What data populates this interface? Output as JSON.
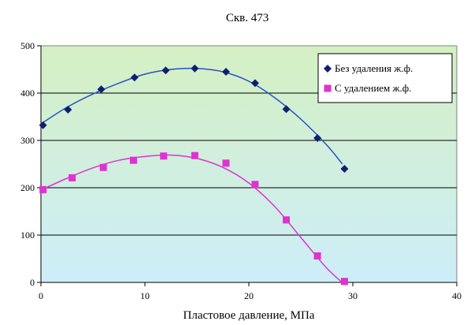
{
  "chart_data": {
    "type": "scatter",
    "title": "Скв. 473",
    "xlabel": "Пластовое давление, МПа",
    "ylabel": "",
    "xlim": [
      0,
      40
    ],
    "ylim": [
      0,
      500
    ],
    "xticks": [
      0,
      10,
      20,
      30,
      40
    ],
    "yticks": [
      0,
      100,
      200,
      300,
      400,
      500
    ],
    "grid": "horizontal",
    "legend_position": "top-right",
    "background_gradient": {
      "top": "#d4f0c2",
      "bottom": "#cdeefa"
    },
    "series": [
      {
        "name": "Без удаления ж.ф.",
        "marker": "diamond",
        "marker_color": "#0f1f6e",
        "line_color": "#2a4ec8",
        "x": [
          0.2,
          2.6,
          5.8,
          9.0,
          12.0,
          14.8,
          17.8,
          20.6,
          23.6,
          26.6,
          29.2
        ],
        "y": [
          332,
          365,
          408,
          433,
          448,
          452,
          445,
          421,
          366,
          305,
          240
        ],
        "trend_x": [
          0.0,
          2.5,
          5.0,
          7.5,
          10.0,
          12.5,
          15.0,
          17.5,
          20.0,
          22.5,
          25.0,
          27.5,
          29.0
        ],
        "trend_y": [
          335,
          370,
          398,
          421,
          440,
          450,
          452,
          445,
          425,
          390,
          345,
          290,
          250
        ]
      },
      {
        "name": "С удалением ж.ф.",
        "marker": "square",
        "marker_color": "#e032d0",
        "line_color": "#e032d0",
        "x": [
          0.2,
          3.0,
          6.0,
          8.9,
          11.8,
          14.8,
          17.8,
          20.6,
          23.6,
          26.6,
          29.2
        ],
        "y": [
          196,
          221,
          243,
          258,
          267,
          268,
          252,
          207,
          132,
          56,
          2
        ],
        "trend_x": [
          0.0,
          2.5,
          5.0,
          7.5,
          10.0,
          12.5,
          15.0,
          17.5,
          20.0,
          22.5,
          25.0,
          27.5,
          29.5
        ],
        "trend_y": [
          195,
          220,
          242,
          258,
          266,
          269,
          262,
          243,
          210,
          160,
          95,
          30,
          -10
        ]
      }
    ]
  }
}
